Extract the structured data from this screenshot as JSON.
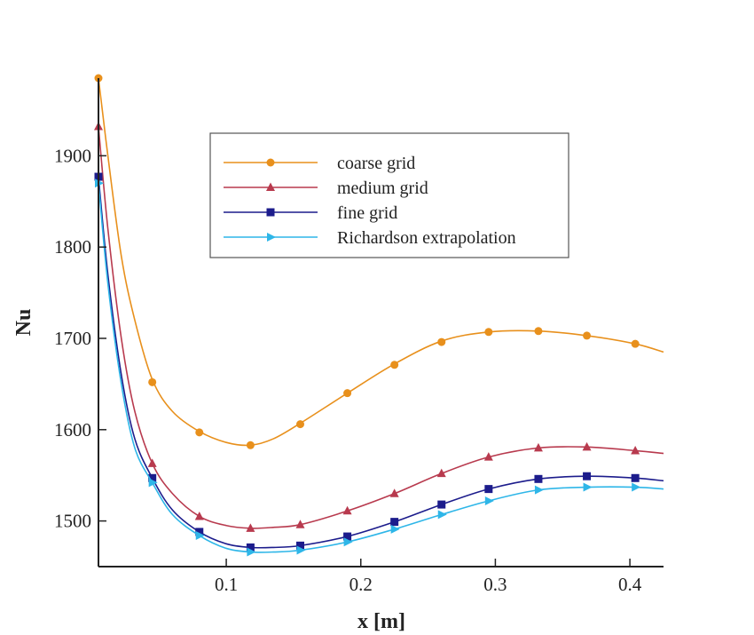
{
  "chart_data": {
    "type": "line",
    "title": "",
    "xlabel": "x [m]",
    "ylabel": "Nu",
    "xlim": [
      0.005,
      0.425
    ],
    "ylim": [
      1450,
      1985
    ],
    "xticks": [
      0.1,
      0.2,
      0.3,
      0.4
    ],
    "xtick_labels": [
      "0.1",
      "0.2",
      "0.3",
      "0.4"
    ],
    "yticks": [
      1500,
      1600,
      1700,
      1800,
      1900
    ],
    "ytick_labels": [
      "1500",
      "1600",
      "1700",
      "1800",
      "1900"
    ],
    "grid": false,
    "legend_position": "top-center",
    "series": [
      {
        "name": "coarse grid",
        "color": "#e8901c",
        "marker": "circle",
        "curve": [
          [
            0.005,
            1985
          ],
          [
            0.012,
            1900
          ],
          [
            0.022,
            1790
          ],
          [
            0.032,
            1720
          ],
          [
            0.045,
            1655
          ],
          [
            0.06,
            1620
          ],
          [
            0.08,
            1598
          ],
          [
            0.1,
            1586
          ],
          [
            0.118,
            1583
          ],
          [
            0.135,
            1590
          ],
          [
            0.155,
            1607
          ],
          [
            0.19,
            1640
          ],
          [
            0.225,
            1672
          ],
          [
            0.26,
            1697
          ],
          [
            0.295,
            1707
          ],
          [
            0.332,
            1708
          ],
          [
            0.368,
            1703
          ],
          [
            0.404,
            1694
          ],
          [
            0.425,
            1685
          ]
        ],
        "x": [
          0.005,
          0.045,
          0.08,
          0.118,
          0.155,
          0.19,
          0.225,
          0.26,
          0.295,
          0.332,
          0.368,
          0.404
        ],
        "y": [
          1985,
          1652,
          1597,
          1583,
          1606,
          1640,
          1671,
          1696,
          1707,
          1708,
          1703,
          1694
        ]
      },
      {
        "name": "medium grid",
        "color": "#b83a4e",
        "marker": "triangle-up",
        "curve": [
          [
            0.005,
            1932
          ],
          [
            0.012,
            1820
          ],
          [
            0.022,
            1700
          ],
          [
            0.032,
            1620
          ],
          [
            0.045,
            1563
          ],
          [
            0.06,
            1530
          ],
          [
            0.08,
            1505
          ],
          [
            0.1,
            1495
          ],
          [
            0.118,
            1492
          ],
          [
            0.135,
            1493
          ],
          [
            0.155,
            1496
          ],
          [
            0.19,
            1511
          ],
          [
            0.225,
            1530
          ],
          [
            0.26,
            1552
          ],
          [
            0.295,
            1570
          ],
          [
            0.332,
            1580
          ],
          [
            0.368,
            1581
          ],
          [
            0.404,
            1577
          ],
          [
            0.425,
            1574
          ]
        ],
        "x": [
          0.005,
          0.045,
          0.08,
          0.118,
          0.155,
          0.19,
          0.225,
          0.26,
          0.295,
          0.332,
          0.368,
          0.404
        ],
        "y": [
          1932,
          1563,
          1505,
          1492,
          1496,
          1511,
          1530,
          1552,
          1570,
          1580,
          1581,
          1577
        ]
      },
      {
        "name": "fine grid",
        "color": "#1c1c8c",
        "marker": "square",
        "curve": [
          [
            0.005,
            1877
          ],
          [
            0.012,
            1770
          ],
          [
            0.022,
            1660
          ],
          [
            0.032,
            1590
          ],
          [
            0.045,
            1547
          ],
          [
            0.06,
            1512
          ],
          [
            0.08,
            1488
          ],
          [
            0.1,
            1475
          ],
          [
            0.118,
            1471
          ],
          [
            0.135,
            1471
          ],
          [
            0.155,
            1473
          ],
          [
            0.19,
            1483
          ],
          [
            0.225,
            1499
          ],
          [
            0.26,
            1518
          ],
          [
            0.295,
            1535
          ],
          [
            0.332,
            1546
          ],
          [
            0.368,
            1549
          ],
          [
            0.404,
            1547
          ],
          [
            0.425,
            1544
          ]
        ],
        "x": [
          0.005,
          0.045,
          0.08,
          0.118,
          0.155,
          0.19,
          0.225,
          0.26,
          0.295,
          0.332,
          0.368,
          0.404
        ],
        "y": [
          1877,
          1547,
          1488,
          1471,
          1473,
          1483,
          1499,
          1518,
          1535,
          1546,
          1549,
          1547
        ]
      },
      {
        "name": "Richardson extrapolation",
        "color": "#2eb6e8",
        "marker": "triangle-right",
        "curve": [
          [
            0.005,
            1870
          ],
          [
            0.012,
            1760
          ],
          [
            0.022,
            1650
          ],
          [
            0.032,
            1580
          ],
          [
            0.045,
            1542
          ],
          [
            0.06,
            1507
          ],
          [
            0.08,
            1484
          ],
          [
            0.1,
            1470
          ],
          [
            0.118,
            1466
          ],
          [
            0.135,
            1466
          ],
          [
            0.155,
            1468
          ],
          [
            0.19,
            1477
          ],
          [
            0.225,
            1491
          ],
          [
            0.26,
            1507
          ],
          [
            0.295,
            1522
          ],
          [
            0.332,
            1534
          ],
          [
            0.368,
            1537
          ],
          [
            0.404,
            1537
          ],
          [
            0.425,
            1535
          ]
        ],
        "x": [
          0.005,
          0.045,
          0.08,
          0.118,
          0.155,
          0.19,
          0.225,
          0.26,
          0.295,
          0.332,
          0.368,
          0.404
        ],
        "y": [
          1870,
          1542,
          1484,
          1466,
          1468,
          1477,
          1491,
          1507,
          1522,
          1534,
          1537,
          1537
        ]
      }
    ]
  }
}
